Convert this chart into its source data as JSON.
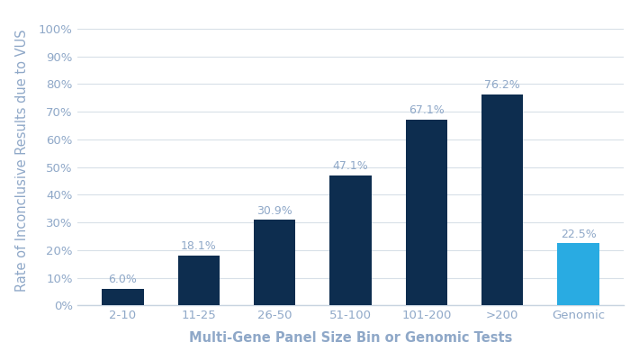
{
  "categories": [
    "2-10",
    "11-25",
    "26-50",
    "51-100",
    "101-200",
    ">200",
    "Genomic"
  ],
  "values": [
    6.0,
    18.1,
    30.9,
    47.1,
    67.1,
    76.2,
    22.5
  ],
  "labels": [
    "6.0%",
    "18.1%",
    "30.9%",
    "47.1%",
    "67.1%",
    "76.2%",
    "22.5%"
  ],
  "bar_colors": [
    "#0d2d4f",
    "#0d2d4f",
    "#0d2d4f",
    "#0d2d4f",
    "#0d2d4f",
    "#0d2d4f",
    "#29abe2"
  ],
  "xlabel": "Multi-Gene Panel Size Bin or Genomic Tests",
  "ylabel": "Rate of Inconclusive Results due to VUS",
  "ylim": [
    0,
    100
  ],
  "yticks": [
    0,
    10,
    20,
    30,
    40,
    50,
    60,
    70,
    80,
    90,
    100
  ],
  "ytick_labels": [
    "0%",
    "10%",
    "20%",
    "30%",
    "40%",
    "50%",
    "60%",
    "70%",
    "80%",
    "90%",
    "100%"
  ],
  "background_color": "#ffffff",
  "text_color": "#8fa8c8",
  "grid_color": "#d8e0e8",
  "spine_color": "#c8d4e0",
  "label_fontsize": 9.5,
  "axis_label_fontsize": 10.5,
  "tick_fontsize": 9.5,
  "bar_label_fontsize": 9.0
}
